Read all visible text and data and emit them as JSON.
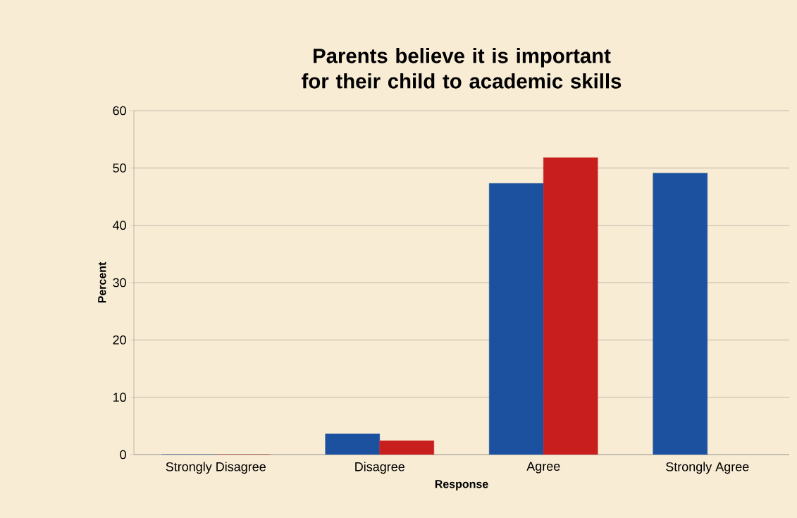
{
  "chart_data": {
    "type": "bar",
    "title": "Parents believe it is important for their child to academic skills",
    "xlabel": "Response",
    "ylabel": "Percent",
    "categories": [
      "Strongly Disagree",
      "Disagree",
      "Agree",
      "Strongly Agree"
    ],
    "series": [
      {
        "color": "#1c51a0",
        "values": [
          0,
          3.6,
          47.3,
          49.1
        ]
      },
      {
        "color": "#c81e1e",
        "values": [
          0,
          2.4,
          51.8,
          null
        ]
      }
    ],
    "ylim": [
      0,
      60
    ],
    "yticks": [
      0,
      10,
      20,
      30,
      40,
      50,
      60
    ],
    "grid": "y"
  }
}
